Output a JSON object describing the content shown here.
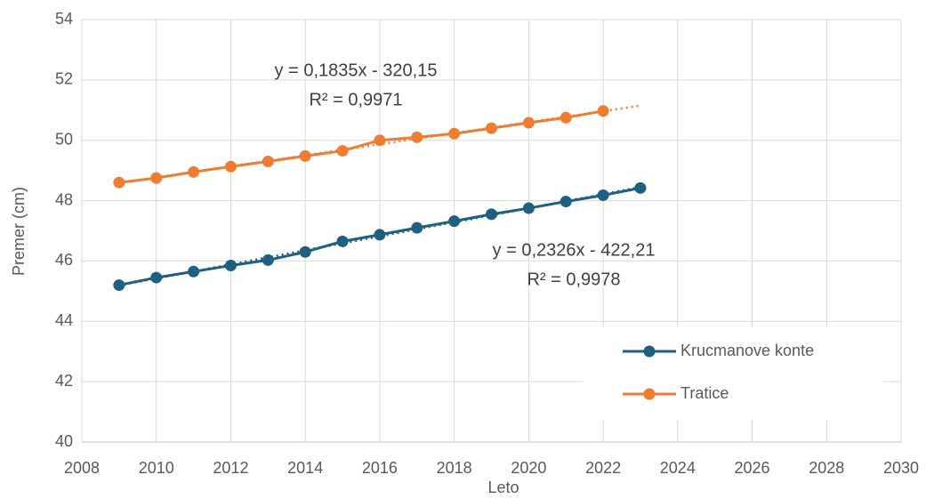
{
  "chart_data": {
    "type": "line",
    "x_label": "Leto",
    "y_label": "Premer (cm)",
    "xlim": [
      2008,
      2030
    ],
    "xticks": [
      2008,
      2010,
      2012,
      2014,
      2016,
      2018,
      2020,
      2022,
      2024,
      2026,
      2028,
      2030
    ],
    "ylim": [
      40,
      54
    ],
    "yticks": [
      40,
      42,
      44,
      46,
      48,
      50,
      52,
      54
    ],
    "grid": true,
    "legend": "lower right",
    "series": [
      {
        "name": "Krucmanove konte",
        "color": "#1f5f7f",
        "x": [
          2009,
          2010,
          2011,
          2012,
          2013,
          2014,
          2015,
          2016,
          2017,
          2018,
          2019,
          2020,
          2021,
          2022,
          2023
        ],
        "values": [
          45.2,
          45.45,
          45.65,
          45.85,
          46.03,
          46.3,
          46.65,
          46.87,
          47.1,
          47.32,
          47.55,
          47.75,
          47.97,
          48.18,
          48.42
        ],
        "trendline": {
          "equation": "y = 0,2326x - 422,21",
          "r2": "R² = 0,9978",
          "forward": 0
        }
      },
      {
        "name": "Tratice",
        "color": "#ee7d31",
        "x": [
          2009,
          2010,
          2011,
          2012,
          2013,
          2014,
          2015,
          2016,
          2017,
          2018,
          2019,
          2020,
          2021,
          2022
        ],
        "values": [
          48.6,
          48.75,
          48.95,
          49.13,
          49.3,
          49.48,
          49.65,
          50.0,
          50.1,
          50.22,
          50.4,
          50.58,
          50.75,
          50.97
        ],
        "trendline": {
          "equation": "y = 0,1835x - 320,15",
          "r2": "R² = 0,9971",
          "forward": 1
        }
      }
    ]
  }
}
